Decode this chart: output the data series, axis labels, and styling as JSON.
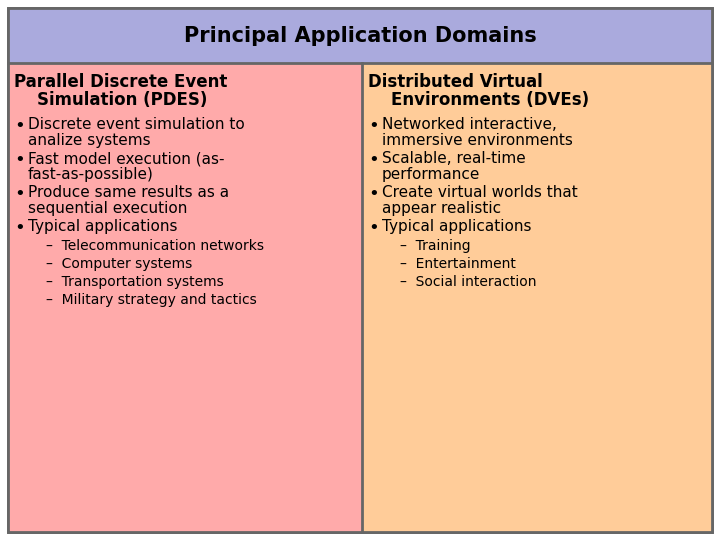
{
  "title": "Principal Application Domains",
  "title_bg": "#aaaadd",
  "left_bg": "#ffaaaa",
  "right_bg": "#ffcc99",
  "border_color": "#666666",
  "left_header_line1": "Parallel Discrete Event",
  "left_header_line2": "    Simulation (PDES)",
  "right_header_line1": "Distributed Virtual",
  "right_header_line2": "    Environments (DVEs)",
  "left_items": [
    {
      "type": "bullet",
      "text": "Discrete event simulation to\nanalize systems"
    },
    {
      "type": "bullet",
      "text": "Fast model execution (as-\nfast-as-possible)"
    },
    {
      "type": "bullet",
      "text": "Produce same results as a\nsequential execution"
    },
    {
      "type": "bullet",
      "text": "Typical applications"
    },
    {
      "type": "sub",
      "text": "–  Telecommunication networks"
    },
    {
      "type": "sub",
      "text": "–  Computer systems"
    },
    {
      "type": "sub",
      "text": "–  Transportation systems"
    },
    {
      "type": "sub",
      "text": "–  Military strategy and tactics"
    }
  ],
  "right_items": [
    {
      "type": "bullet",
      "text": "Networked interactive,\nimmersive environments"
    },
    {
      "type": "bullet",
      "text": "Scalable, real-time\nperformance"
    },
    {
      "type": "bullet",
      "text": "Create virtual worlds that\nappear realistic"
    },
    {
      "type": "bullet",
      "text": "Typical applications"
    },
    {
      "type": "sub",
      "text": "–  Training"
    },
    {
      "type": "sub",
      "text": "–  Entertainment"
    },
    {
      "type": "sub",
      "text": "–  Social interaction"
    }
  ],
  "title_fontsize": 15,
  "header_fontsize": 12,
  "bullet_fontsize": 11,
  "sub_fontsize": 10,
  "fig_width": 7.2,
  "fig_height": 5.4,
  "dpi": 100
}
